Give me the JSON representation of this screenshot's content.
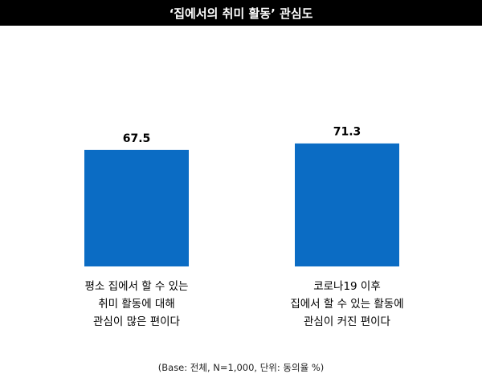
{
  "chart_data": {
    "type": "bar",
    "title": "‘집에서의 취미 활동’ 관심도",
    "categories": [
      [
        "평소 집에서 할 수 있는",
        "취미 활동에 대해",
        "관심이 많은 편이다"
      ],
      [
        "코로나19 이후",
        "집에서 할 수 있는 활동에",
        "관심이 커진 편이다"
      ]
    ],
    "values": [
      67.5,
      71.3
    ],
    "value_labels": [
      "67.5",
      "71.3"
    ],
    "ylim": [
      0,
      100
    ],
    "grid": false,
    "bar_color": "#0B6CC4",
    "footnote": "(Base: 전체, N=1,000, 단위: 동의율 %)"
  }
}
